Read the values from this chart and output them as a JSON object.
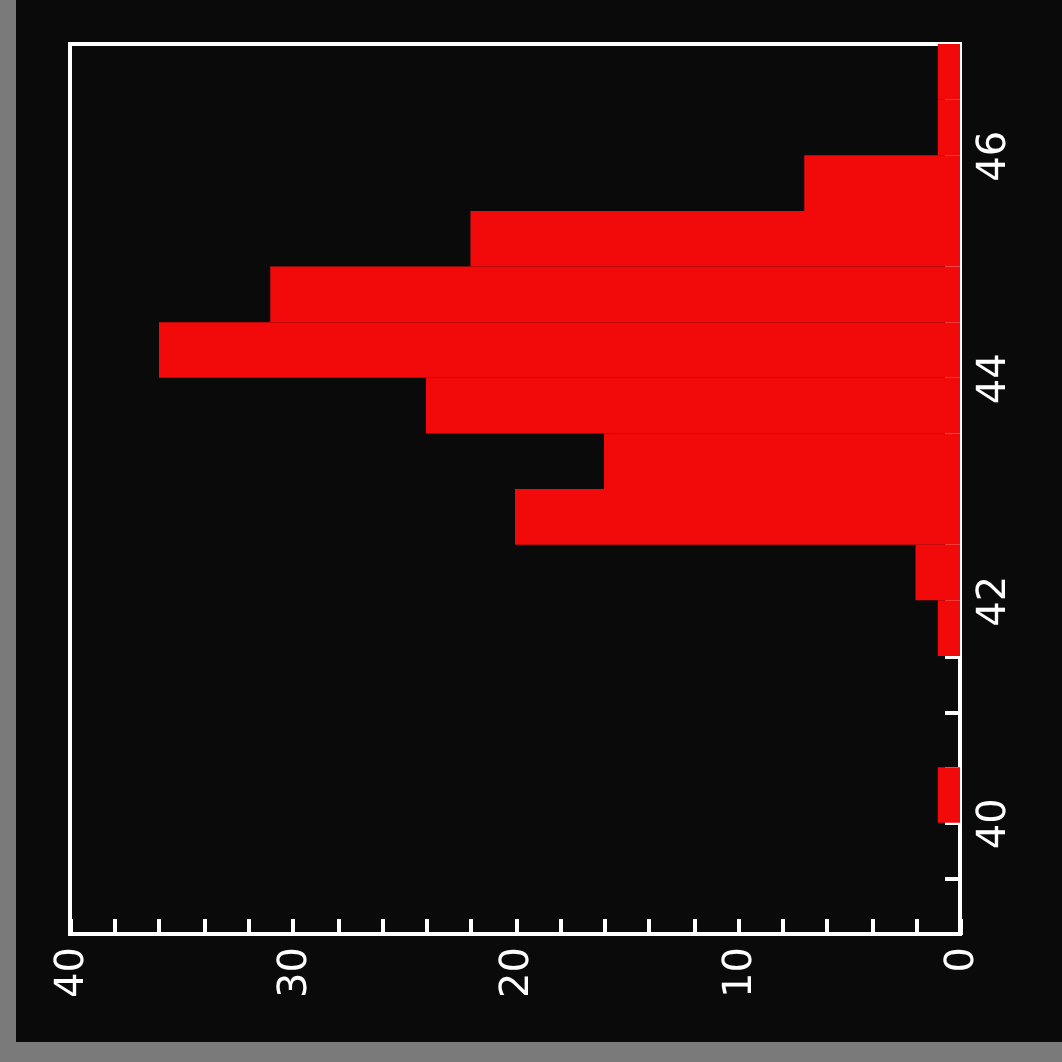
{
  "chart_data": {
    "type": "histogram",
    "orientation": "horizontal",
    "color": "#f20a0a",
    "bins": [
      40,
      40.5,
      41,
      41.5,
      42,
      42.5,
      43,
      43.5,
      44,
      44.5,
      45,
      45.5,
      46,
      46.5,
      47
    ],
    "values": [
      1,
      0,
      0,
      1,
      2,
      20,
      16,
      24,
      36,
      31,
      22,
      7,
      1,
      1
    ],
    "xlim": [
      40,
      0
    ],
    "xticks": [
      0,
      {
        "value": 2,
        "label": null
      },
      {
        "value": 4,
        "label": null
      },
      {
        "value": 6,
        "label": null
      },
      {
        "value": 8,
        "label": null
      },
      10,
      {
        "value": 12,
        "label": null
      },
      {
        "value": 14,
        "label": null
      },
      {
        "value": 16,
        "label": null
      },
      {
        "value": 18,
        "label": null
      },
      20,
      {
        "value": 22,
        "label": null
      },
      {
        "value": 24,
        "label": null
      },
      {
        "value": 26,
        "label": null
      },
      {
        "value": 28,
        "label": null
      },
      30,
      {
        "value": 32,
        "label": null
      },
      {
        "value": 34,
        "label": null
      },
      {
        "value": 36,
        "label": null
      },
      {
        "value": 38,
        "label": null
      },
      40
    ],
    "ylim": [
      39,
      47
    ],
    "yticks": [
      {
        "value": 39.5,
        "label": null
      },
      40,
      {
        "value": 40.5,
        "label": null
      },
      {
        "value": 41,
        "label": null
      },
      {
        "value": 41.5,
        "label": null
      },
      42,
      {
        "value": 42.5,
        "label": null
      },
      {
        "value": 43,
        "label": null
      },
      {
        "value": 43.5,
        "label": null
      },
      44,
      {
        "value": 44.5,
        "label": null
      },
      {
        "value": 45,
        "label": null
      },
      {
        "value": 45.5,
        "label": null
      },
      46,
      {
        "value": 46.5,
        "label": null
      }
    ],
    "grid": false
  }
}
